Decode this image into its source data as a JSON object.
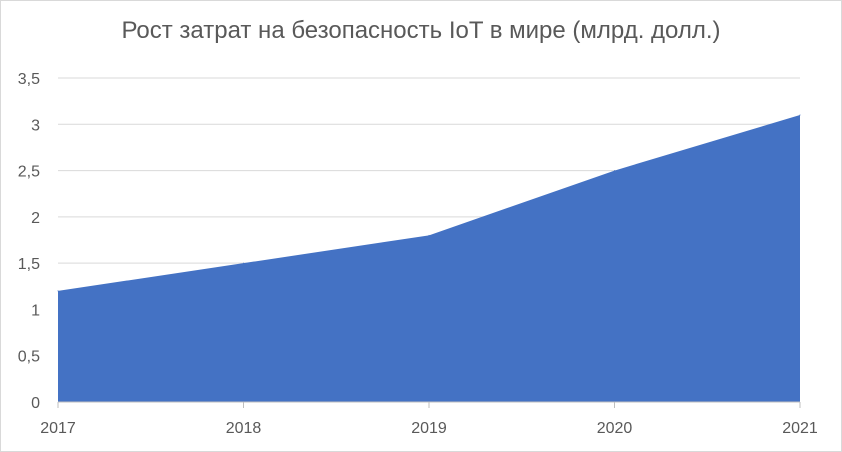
{
  "chart_data": {
    "type": "area",
    "title": "Рост затрат на безопасность IoT в мире (млрд. долл.)",
    "xlabel": "",
    "ylabel": "",
    "x": [
      "2017",
      "2018",
      "2019",
      "2020",
      "2021"
    ],
    "values": [
      1.2,
      1.5,
      1.8,
      2.5,
      3.1
    ],
    "ylim": [
      0,
      3.5
    ],
    "yticks": [
      {
        "value": 0,
        "label": "0"
      },
      {
        "value": 0.5,
        "label": "0,5"
      },
      {
        "value": 1,
        "label": "1"
      },
      {
        "value": 1.5,
        "label": "1,5"
      },
      {
        "value": 2,
        "label": "2"
      },
      {
        "value": 2.5,
        "label": "2,5"
      },
      {
        "value": 3,
        "label": "3"
      },
      {
        "value": 3.5,
        "label": "3,5"
      }
    ],
    "grid": true,
    "legend": "none",
    "colors": {
      "area": "#4472c4",
      "grid": "#d9d9d9",
      "axis": "#bfbfbf",
      "text": "#595959"
    }
  }
}
